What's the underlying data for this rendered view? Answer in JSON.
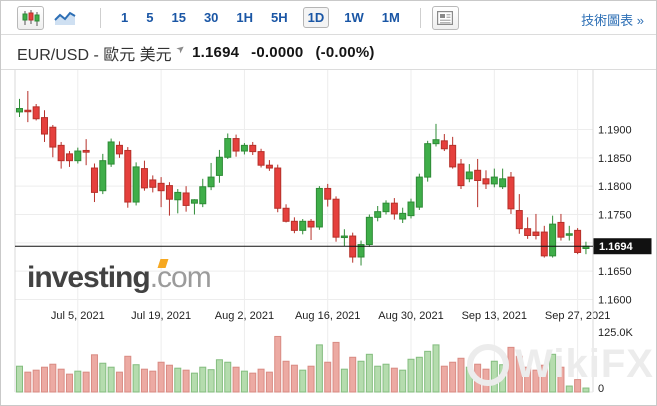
{
  "toolbar": {
    "chart_type_candle_icon": "candlestick-chart-type",
    "chart_type_line_icon": "line-chart-type",
    "timeframes": [
      "1",
      "5",
      "15",
      "30",
      "1H",
      "5H",
      "1D",
      "1W",
      "1M"
    ],
    "selected_timeframe": "1D",
    "technical_chart_link": "技術圖表 »"
  },
  "header": {
    "pair_title": "EUR/USD - 歐元 美元",
    "last_price": "1.1694",
    "change": "-0.0000",
    "change_percent": "(-0.00%)"
  },
  "watermarks": {
    "investing_main": "investing",
    "investing_tld": ".com",
    "wikifx": "WikiFX"
  },
  "colors": {
    "up_fill": "#3fae49",
    "up_stroke": "#2e8b36",
    "down_fill": "#e5403d",
    "down_stroke": "#b63029",
    "vol_up_fill": "#b5dcae",
    "vol_up_stroke": "#84bd7f",
    "vol_down_fill": "#ecaaa3",
    "vol_down_stroke": "#d98b83",
    "grid": "#ededed",
    "axis_line": "#d8d8d8",
    "label": "#222222",
    "price_line": "#111111",
    "badge_bg": "#111111",
    "badge_text": "#ffffff",
    "accent_blue": "#1a56a5",
    "link_blue": "#2d6fb5"
  },
  "chart_data": {
    "type": "candlestick",
    "title": "EUR/USD daily candlestick chart with volume",
    "last_price": 1.1694,
    "price_badge": "1.1694",
    "y_axis": {
      "range": [
        1.1585,
        1.2005
      ],
      "gridlines": [
        1.19,
        1.185,
        1.18,
        1.175,
        1.17,
        1.165,
        1.16
      ],
      "labels": [
        {
          "price": 1.19,
          "text": "1.1900"
        },
        {
          "price": 1.185,
          "text": "1.1850"
        },
        {
          "price": 1.18,
          "text": "1.1800"
        },
        {
          "price": 1.175,
          "text": "1.1750"
        },
        {
          "price": 1.165,
          "text": "1.1650"
        },
        {
          "price": 1.16,
          "text": "1.1600"
        }
      ]
    },
    "x_axis": {
      "labels": [
        {
          "index": 7,
          "text": "Jul 5, 2021"
        },
        {
          "index": 17,
          "text": "Jul 19, 2021"
        },
        {
          "index": 27,
          "text": "Aug 2, 2021"
        },
        {
          "index": 37,
          "text": "Aug 16, 2021"
        },
        {
          "index": 47,
          "text": "Aug 30, 2021"
        },
        {
          "index": 57,
          "text": "Sep 13, 2021"
        },
        {
          "index": 67,
          "text": "Sep 27, 2021"
        }
      ]
    },
    "volume_axis": {
      "max_label": "125.0K",
      "min_label": "0",
      "max_value_k": 125
    },
    "candles": [
      [
        1.1931,
        1.1954,
        1.1922,
        1.1937
      ],
      [
        1.1934,
        1.1968,
        1.1913,
        1.1932
      ],
      [
        1.194,
        1.1945,
        1.1916,
        1.1919
      ],
      [
        1.1921,
        1.1934,
        1.1878,
        1.1892
      ],
      [
        1.1904,
        1.1908,
        1.1851,
        1.1869
      ],
      [
        1.1872,
        1.1878,
        1.1831,
        1.1845
      ],
      [
        1.1857,
        1.1862,
        1.1834,
        1.1845
      ],
      [
        1.1845,
        1.1868,
        1.184,
        1.1862
      ],
      [
        1.1863,
        1.1883,
        1.1837,
        1.186
      ],
      [
        1.1832,
        1.184,
        1.1772,
        1.1789
      ],
      [
        1.1792,
        1.1857,
        1.1786,
        1.1845
      ],
      [
        1.1839,
        1.1884,
        1.1834,
        1.1878
      ],
      [
        1.1872,
        1.1879,
        1.185,
        1.1857
      ],
      [
        1.1863,
        1.1869,
        1.1762,
        1.1772
      ],
      [
        1.1772,
        1.1842,
        1.1766,
        1.1834
      ],
      [
        1.1831,
        1.1845,
        1.1792,
        1.1797
      ],
      [
        1.1811,
        1.1819,
        1.1789,
        1.1798
      ],
      [
        1.1805,
        1.1816,
        1.1763,
        1.1792
      ],
      [
        1.1801,
        1.1807,
        1.1748,
        1.1777
      ],
      [
        1.1776,
        1.1795,
        1.1752,
        1.1789
      ],
      [
        1.1788,
        1.18,
        1.1755,
        1.1766
      ],
      [
        1.177,
        1.1777,
        1.175,
        1.1776
      ],
      [
        1.1769,
        1.1813,
        1.1763,
        1.1799
      ],
      [
        1.1799,
        1.1841,
        1.1793,
        1.1816
      ],
      [
        1.1819,
        1.1864,
        1.1806,
        1.1851
      ],
      [
        1.1851,
        1.1893,
        1.1848,
        1.1884
      ],
      [
        1.1884,
        1.1891,
        1.1852,
        1.1862
      ],
      [
        1.1862,
        1.1876,
        1.1856,
        1.1872
      ],
      [
        1.1872,
        1.1878,
        1.1855,
        1.1861
      ],
      [
        1.1861,
        1.1866,
        1.1833,
        1.1837
      ],
      [
        1.1837,
        1.1846,
        1.1827,
        1.1832
      ],
      [
        1.1832,
        1.1838,
        1.1754,
        1.1761
      ],
      [
        1.1761,
        1.1768,
        1.1736,
        1.1738
      ],
      [
        1.1738,
        1.1745,
        1.1717,
        1.1722
      ],
      [
        1.1722,
        1.1742,
        1.1715,
        1.1738
      ],
      [
        1.1738,
        1.1742,
        1.1705,
        1.1728
      ],
      [
        1.1728,
        1.18,
        1.1723,
        1.1796
      ],
      [
        1.1796,
        1.1804,
        1.1764,
        1.1777
      ],
      [
        1.1777,
        1.1782,
        1.1702,
        1.171
      ],
      [
        1.171,
        1.1724,
        1.1694,
        1.1712
      ],
      [
        1.1712,
        1.1718,
        1.1665,
        1.1675
      ],
      [
        1.1675,
        1.1704,
        1.166,
        1.1697
      ],
      [
        1.1697,
        1.175,
        1.1693,
        1.1745
      ],
      [
        1.1745,
        1.1765,
        1.1738,
        1.1755
      ],
      [
        1.1755,
        1.1775,
        1.175,
        1.177
      ],
      [
        1.177,
        1.1779,
        1.1741,
        1.1751
      ],
      [
        1.1742,
        1.1762,
        1.1735,
        1.1752
      ],
      [
        1.1748,
        1.1778,
        1.1743,
        1.1772
      ],
      [
        1.1763,
        1.1822,
        1.1758,
        1.1816
      ],
      [
        1.1816,
        1.188,
        1.1808,
        1.1875
      ],
      [
        1.1875,
        1.191,
        1.187,
        1.1882
      ],
      [
        1.188,
        1.1892,
        1.1862,
        1.1866
      ],
      [
        1.1872,
        1.1887,
        1.1831,
        1.1834
      ],
      [
        1.1839,
        1.1848,
        1.1795,
        1.1801
      ],
      [
        1.1813,
        1.1839,
        1.1807,
        1.1825
      ],
      [
        1.1828,
        1.1848,
        1.1763,
        1.181
      ],
      [
        1.1813,
        1.1828,
        1.1795,
        1.1804
      ],
      [
        1.1804,
        1.1831,
        1.1798,
        1.1816
      ],
      [
        1.1799,
        1.1831,
        1.1795,
        1.1813
      ],
      [
        1.1816,
        1.1825,
        1.1751,
        1.176
      ],
      [
        1.1757,
        1.1786,
        1.1716,
        1.1725
      ],
      [
        1.1725,
        1.1745,
        1.1707,
        1.1713
      ],
      [
        1.1719,
        1.1751,
        1.1706,
        1.1713
      ],
      [
        1.1719,
        1.173,
        1.1674,
        1.1677
      ],
      [
        1.1677,
        1.1748,
        1.1674,
        1.1733
      ],
      [
        1.1736,
        1.1751,
        1.1704,
        1.171
      ],
      [
        1.1714,
        1.173,
        1.1704,
        1.1716
      ],
      [
        1.1722,
        1.1726,
        1.168,
        1.1683
      ],
      [
        1.169,
        1.1702,
        1.168,
        1.1694
      ]
    ],
    "volumes_k": [
      52,
      40,
      44,
      50,
      56,
      46,
      36,
      42,
      40,
      75,
      58,
      50,
      40,
      72,
      55,
      46,
      42,
      60,
      54,
      48,
      44,
      38,
      50,
      45,
      65,
      60,
      50,
      42,
      38,
      46,
      40,
      112,
      62,
      54,
      44,
      52,
      95,
      60,
      100,
      46,
      70,
      62,
      76,
      52,
      56,
      48,
      44,
      66,
      70,
      82,
      95,
      52,
      60,
      68,
      50,
      56,
      46,
      62,
      55,
      90,
      72,
      50,
      44,
      54,
      76,
      50,
      12,
      25,
      8
    ]
  }
}
